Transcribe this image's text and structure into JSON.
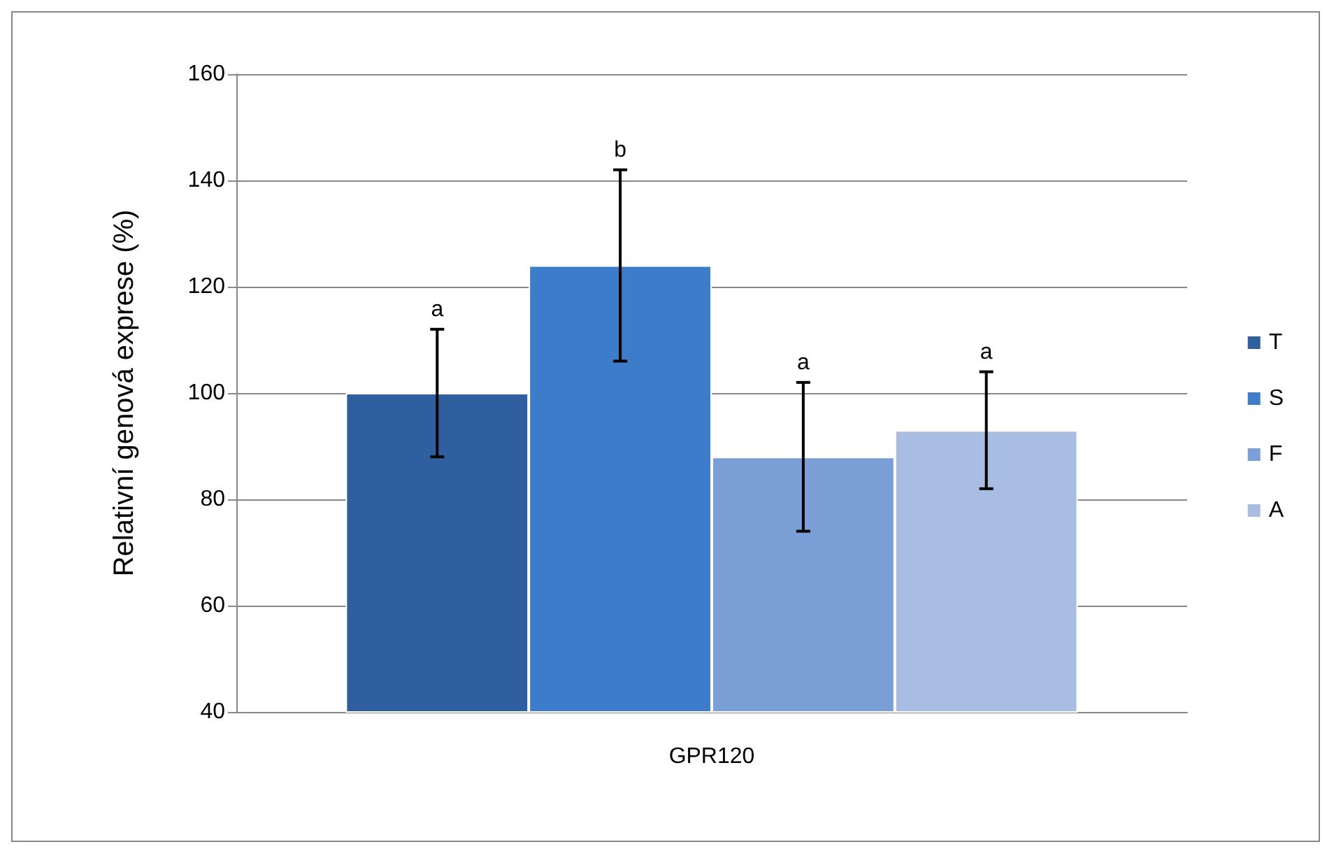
{
  "chart_data": {
    "type": "bar",
    "ylabel": "Relativní genová exprese (%)",
    "categories": [
      "GPR120"
    ],
    "series": [
      {
        "name": "T",
        "color": "#2f5f9e",
        "values": [
          100
        ],
        "errors": [
          12
        ]
      },
      {
        "name": "S",
        "color": "#3d7cc9",
        "values": [
          124
        ],
        "errors": [
          [
            106,
            142
          ]
        ]
      },
      {
        "name": "F",
        "color": "#7a9fd6",
        "values": [
          88
        ],
        "errors": [
          14
        ]
      },
      {
        "name": "A",
        "color": "#a9bde2",
        "values": [
          93
        ],
        "errors": [
          [
            82,
            104
          ]
        ]
      }
    ],
    "annotations": [
      "a",
      "b",
      "a",
      "a"
    ],
    "ylim": [
      40,
      160
    ],
    "yticks": [
      40,
      60,
      80,
      100,
      120,
      140,
      160
    ],
    "grid": "y",
    "legend": "right"
  }
}
